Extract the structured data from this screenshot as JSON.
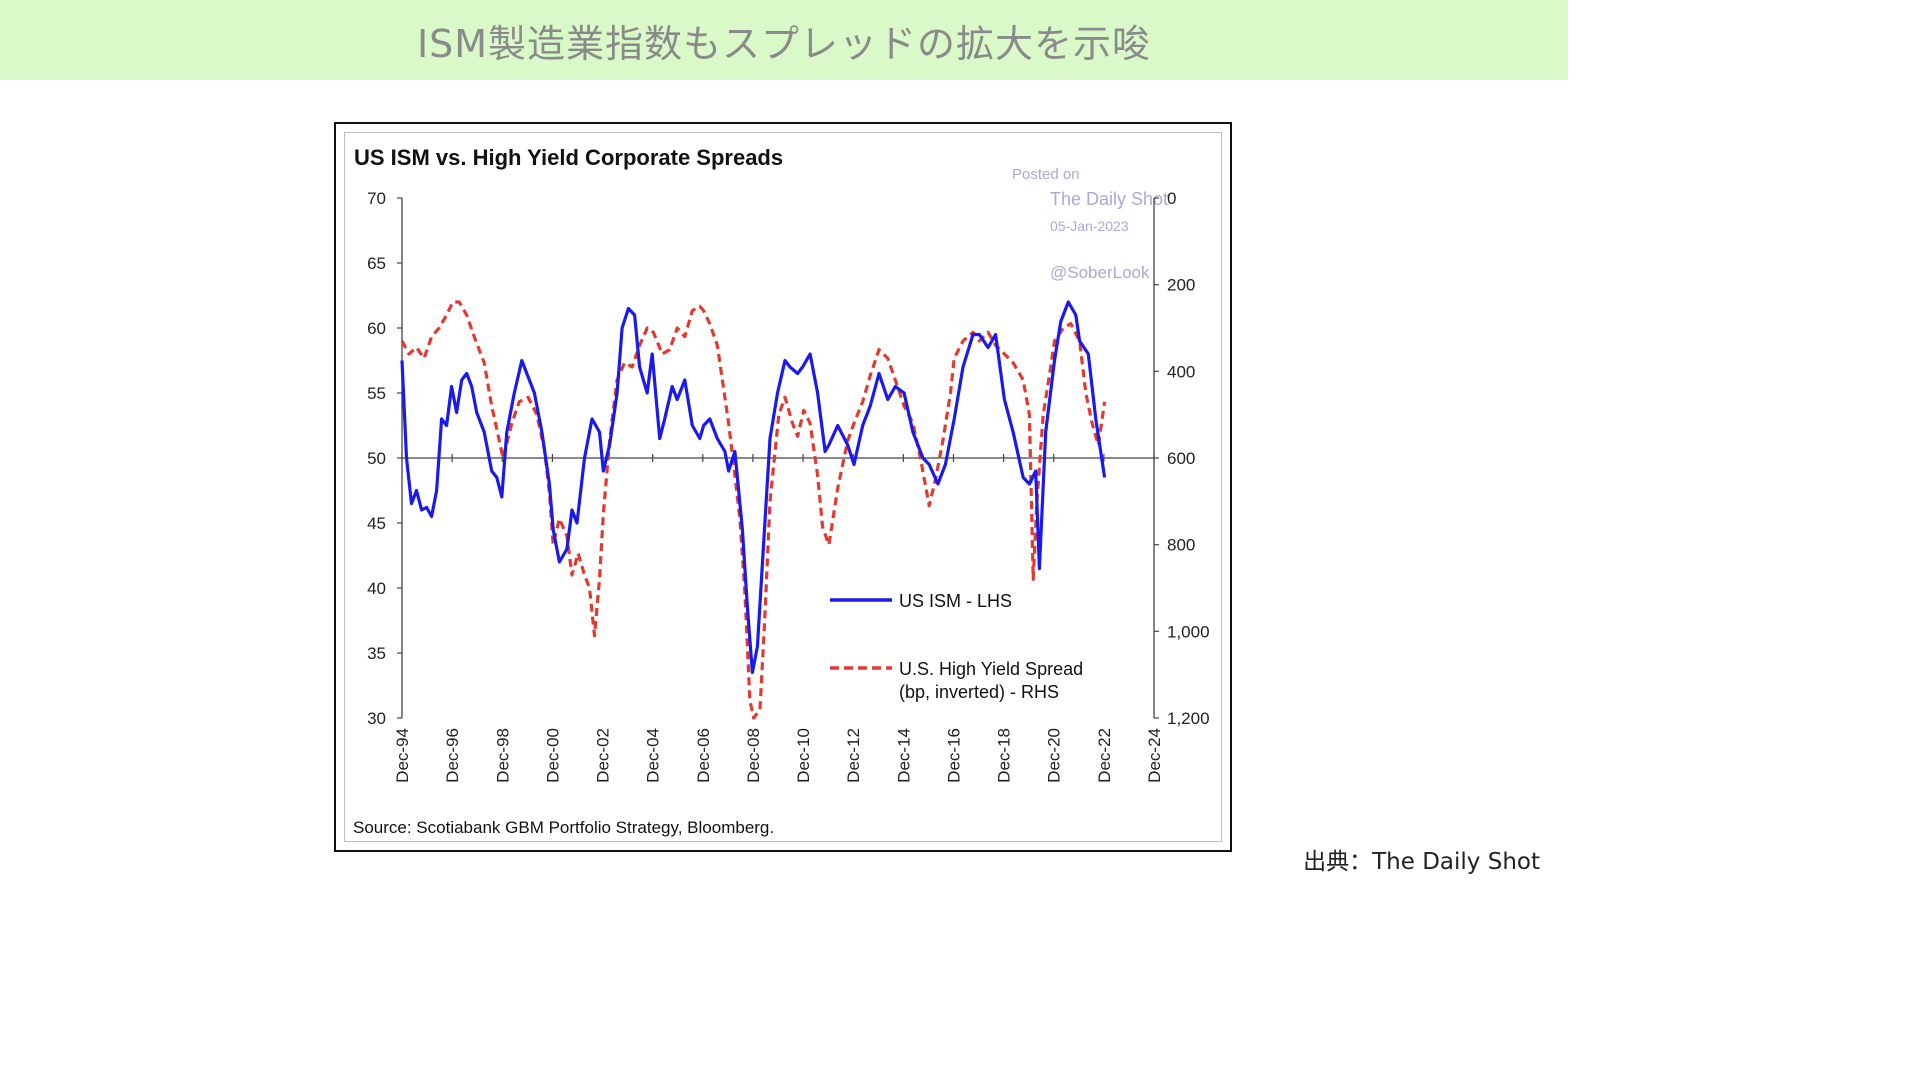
{
  "banner": {
    "title": "ISM製造業指数もスプレッドの拡大を示唆"
  },
  "caption": "出典：The Daily Shot",
  "watermark": {
    "posted": "Posted on",
    "site": "The Daily Shot",
    "date": "05-Jan-2023",
    "handle": "@SoberLook"
  },
  "colors": {
    "ism": "#1a1aee",
    "spread": "#e23a2e",
    "banner": "#d9fac8"
  },
  "chart_data": {
    "type": "line",
    "title": "US ISM vs. High Yield Corporate Spreads",
    "source": "Source: Scotiabank GBM Portfolio Strategy, Bloomberg.",
    "xlabel": "",
    "ylabel": "",
    "x_tick_labels": [
      "Dec-94",
      "Dec-96",
      "Dec-98",
      "Dec-00",
      "Dec-02",
      "Dec-04",
      "Dec-06",
      "Dec-08",
      "Dec-10",
      "Dec-12",
      "Dec-14",
      "Dec-16",
      "Dec-18",
      "Dec-20",
      "Dec-22",
      "Dec-24"
    ],
    "xlim": [
      1994.92,
      2024.92
    ],
    "y_left": {
      "lim": [
        30,
        70
      ],
      "ticks": [
        "30",
        "35",
        "40",
        "45",
        "50",
        "55",
        "60",
        "65",
        "70"
      ]
    },
    "y_right": {
      "lim": [
        0,
        1200
      ],
      "inverted": true,
      "ticks": [
        "0",
        "200",
        "400",
        "600",
        "800",
        "1,000",
        "1,200"
      ]
    },
    "grid": false,
    "reference_line": 50,
    "legend_position": "lower-right",
    "series": [
      {
        "name": "US ISM - LHS",
        "axis": "left",
        "style": "solid",
        "x": [
          1994.92,
          1995.1,
          1995.3,
          1995.5,
          1995.7,
          1995.9,
          1996.1,
          1996.3,
          1996.5,
          1996.7,
          1996.9,
          1997.1,
          1997.3,
          1997.5,
          1997.7,
          1997.9,
          1998.2,
          1998.5,
          1998.7,
          1998.9,
          1999.1,
          1999.4,
          1999.7,
          1999.9,
          2000.2,
          2000.5,
          2000.8,
          2000.95,
          2001.2,
          2001.5,
          2001.7,
          2001.9,
          2002.2,
          2002.5,
          2002.8,
          2002.95,
          2003.2,
          2003.5,
          2003.7,
          2003.95,
          2004.2,
          2004.4,
          2004.7,
          2004.9,
          2005.2,
          2005.4,
          2005.7,
          2005.9,
          2006.2,
          2006.5,
          2006.8,
          2006.95,
          2007.2,
          2007.5,
          2007.8,
          2007.95,
          2008.2,
          2008.5,
          2008.7,
          2008.9,
          2009.1,
          2009.3,
          2009.6,
          2009.9,
          2010.2,
          2010.4,
          2010.7,
          2010.9,
          2011.2,
          2011.5,
          2011.8,
          2011.95,
          2012.3,
          2012.7,
          2012.95,
          2013.3,
          2013.6,
          2013.95,
          2014.3,
          2014.6,
          2014.95,
          2015.3,
          2015.7,
          2015.95,
          2016.3,
          2016.6,
          2016.95,
          2017.3,
          2017.7,
          2017.95,
          2018.3,
          2018.6,
          2018.95,
          2019.3,
          2019.7,
          2019.95,
          2020.2,
          2020.35,
          2020.6,
          2020.95,
          2021.2,
          2021.5,
          2021.8,
          2021.95,
          2022.3,
          2022.6,
          2022.95
        ],
        "y": [
          57.5,
          50,
          46.5,
          47.5,
          46,
          46.2,
          45.5,
          47.5,
          53,
          52.5,
          55.5,
          53.5,
          56,
          56.5,
          55.5,
          53.5,
          52,
          49,
          48.5,
          47,
          52,
          55,
          57.5,
          56.5,
          55,
          52,
          48,
          44.5,
          42,
          43,
          46,
          45,
          50,
          53,
          52,
          49,
          51,
          55,
          60,
          61.5,
          61,
          57,
          55,
          58,
          51.5,
          53,
          55.5,
          54.5,
          56,
          52.5,
          51.5,
          52.5,
          53,
          51.5,
          50.5,
          49,
          50.5,
          44.5,
          38.5,
          33.5,
          35.5,
          42,
          51.5,
          55,
          57.5,
          57,
          56.5,
          57,
          58,
          55,
          50.5,
          51,
          52.5,
          51,
          49.5,
          52.5,
          54,
          56.5,
          54.5,
          55.5,
          55,
          52,
          50,
          49.5,
          48,
          49.5,
          53,
          57,
          59.5,
          59.5,
          58.5,
          59.5,
          54.5,
          52,
          48.5,
          48,
          49,
          41.5,
          52,
          57.5,
          60.5,
          62,
          61,
          59,
          58,
          53,
          48.5
        ]
      },
      {
        "name": "U.S. High Yield Spread (bp, inverted) - RHS",
        "label_lines": [
          "U.S. High Yield Spread",
          "(bp, inverted) - RHS"
        ],
        "axis": "right",
        "style": "dashed",
        "x": [
          1994.92,
          1995.2,
          1995.5,
          1995.8,
          1996.1,
          1996.4,
          1996.7,
          1996.95,
          1997.2,
          1997.5,
          1997.8,
          1998.2,
          1998.5,
          1998.8,
          1998.95,
          1999.3,
          1999.6,
          1999.95,
          2000.3,
          2000.6,
          2000.8,
          2000.95,
          2001.2,
          2001.5,
          2001.7,
          2001.95,
          2002.2,
          2002.4,
          2002.6,
          2002.8,
          2002.95,
          2003.2,
          2003.5,
          2003.8,
          2004.1,
          2004.4,
          2004.7,
          2004.95,
          2005.3,
          2005.6,
          2005.9,
          2006.2,
          2006.5,
          2006.8,
          2006.95,
          2007.2,
          2007.5,
          2007.7,
          2007.95,
          2008.2,
          2008.4,
          2008.6,
          2008.8,
          2008.95,
          2009.2,
          2009.4,
          2009.6,
          2009.95,
          2010.2,
          2010.5,
          2010.7,
          2010.95,
          2011.2,
          2011.5,
          2011.7,
          2011.95,
          2012.3,
          2012.7,
          2012.95,
          2013.3,
          2013.6,
          2013.95,
          2014.3,
          2014.6,
          2014.95,
          2015.3,
          2015.6,
          2015.95,
          2016.2,
          2016.5,
          2016.8,
          2016.95,
          2017.3,
          2017.7,
          2017.95,
          2018.3,
          2018.6,
          2018.95,
          2019.3,
          2019.7,
          2019.95,
          2020.1,
          2020.25,
          2020.5,
          2020.8,
          2020.95,
          2021.3,
          2021.6,
          2021.95,
          2022.2,
          2022.45,
          2022.7,
          2022.95
        ],
        "y": [
          330,
          360,
          345,
          370,
          320,
          300,
          270,
          240,
          240,
          270,
          320,
          380,
          480,
          560,
          600,
          520,
          470,
          460,
          500,
          580,
          680,
          800,
          740,
          780,
          870,
          820,
          870,
          900,
          1010,
          880,
          730,
          560,
          420,
          380,
          390,
          340,
          300,
          310,
          360,
          350,
          300,
          320,
          260,
          250,
          260,
          290,
          340,
          420,
          520,
          640,
          740,
          910,
          1160,
          1200,
          1180,
          960,
          700,
          500,
          460,
          520,
          550,
          490,
          520,
          640,
          760,
          800,
          670,
          560,
          520,
          470,
          410,
          350,
          370,
          420,
          480,
          520,
          600,
          710,
          650,
          560,
          450,
          370,
          330,
          310,
          330,
          310,
          340,
          360,
          380,
          420,
          500,
          880,
          700,
          500,
          390,
          330,
          300,
          290,
          330,
          450,
          520,
          570,
          470
        ]
      }
    ]
  }
}
